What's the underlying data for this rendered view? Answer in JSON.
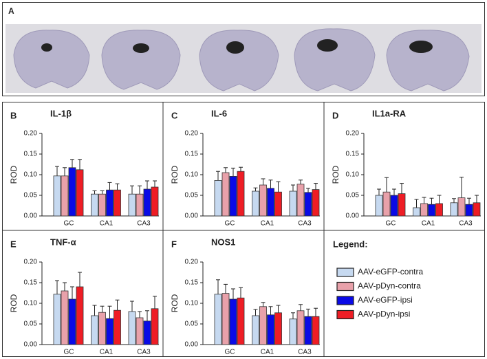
{
  "panel_a": {
    "label": "A"
  },
  "legend": {
    "title": "Legend:",
    "entries": [
      {
        "name": "AAV-eGFP-contra",
        "color": "#c6d9f0"
      },
      {
        "name": "AAV-pDyn-contra",
        "color": "#e8a1aa"
      },
      {
        "name": "AAV-eGFP-ipsi",
        "color": "#0a0ae6"
      },
      {
        "name": "AAV-pDyn-ipsi",
        "color": "#ee1d25"
      }
    ]
  },
  "chart_data": [
    {
      "type": "bar",
      "panel": "B",
      "title": "IL-1β",
      "ylabel": "ROD",
      "categories": [
        "GC",
        "CA1",
        "CA3"
      ],
      "series": [
        {
          "values": [
            0.097,
            0.053,
            0.053
          ],
          "errors": [
            0.023,
            0.008,
            0.02
          ]
        },
        {
          "values": [
            0.097,
            0.053,
            0.053
          ],
          "errors": [
            0.02,
            0.008,
            0.02
          ]
        },
        {
          "values": [
            0.117,
            0.063,
            0.065
          ],
          "errors": [
            0.02,
            0.018,
            0.02
          ]
        },
        {
          "values": [
            0.112,
            0.063,
            0.07
          ],
          "errors": [
            0.025,
            0.015,
            0.015
          ]
        }
      ],
      "ylim": [
        0,
        0.2
      ],
      "yticks": [
        {
          "value": 0,
          "label": "0.00"
        },
        {
          "value": 0.05,
          "label": "0.05"
        },
        {
          "value": 0.1,
          "label": "0.10"
        },
        {
          "value": 0.15,
          "label": "0.15"
        },
        {
          "value": 0.2,
          "label": "0.20"
        }
      ]
    },
    {
      "type": "bar",
      "panel": "C",
      "title": "IL-6",
      "ylabel": "ROD",
      "categories": [
        "GC",
        "CA1",
        "CA3"
      ],
      "series": [
        {
          "values": [
            0.086,
            0.06,
            0.06
          ],
          "errors": [
            0.022,
            0.008,
            0.015
          ]
        },
        {
          "values": [
            0.105,
            0.075,
            0.077
          ],
          "errors": [
            0.012,
            0.015,
            0.01
          ]
        },
        {
          "values": [
            0.096,
            0.067,
            0.057
          ],
          "errors": [
            0.02,
            0.02,
            0.01
          ]
        },
        {
          "values": [
            0.108,
            0.058,
            0.064
          ],
          "errors": [
            0.01,
            0.025,
            0.015
          ]
        }
      ],
      "ylim": [
        0,
        0.2
      ],
      "yticks": [
        {
          "value": 0,
          "label": "0.00"
        },
        {
          "value": 0.05,
          "label": "0.05"
        },
        {
          "value": 0.1,
          "label": "0.10"
        },
        {
          "value": 0.15,
          "label": "0.15"
        },
        {
          "value": 0.2,
          "label": "0.20"
        }
      ]
    },
    {
      "type": "bar",
      "panel": "D",
      "title": "IL1a-RA",
      "ylabel": "ROD",
      "categories": [
        "GC",
        "CA1",
        "CA3"
      ],
      "series": [
        {
          "values": [
            0.05,
            0.02,
            0.032
          ],
          "errors": [
            0.015,
            0.02,
            0.01
          ]
        },
        {
          "values": [
            0.058,
            0.03,
            0.044
          ],
          "errors": [
            0.035,
            0.015,
            0.05
          ]
        },
        {
          "values": [
            0.05,
            0.028,
            0.028
          ],
          "errors": [
            0.015,
            0.015,
            0.015
          ]
        },
        {
          "values": [
            0.054,
            0.03,
            0.032
          ],
          "errors": [
            0.025,
            0.02,
            0.018
          ]
        }
      ],
      "ylim": [
        0,
        0.2
      ],
      "yticks": [
        {
          "value": 0,
          "label": "0.00"
        },
        {
          "value": 0.05,
          "label": "0.05"
        },
        {
          "value": 0.1,
          "label": "0.10"
        },
        {
          "value": 0.15,
          "label": "0.15"
        },
        {
          "value": 0.2,
          "label": "0.20"
        }
      ]
    },
    {
      "type": "bar",
      "panel": "E",
      "title": "TNF-α",
      "ylabel": "ROD",
      "categories": [
        "GC",
        "CA1",
        "CA3"
      ],
      "series": [
        {
          "values": [
            0.122,
            0.07,
            0.08
          ],
          "errors": [
            0.033,
            0.025,
            0.025
          ]
        },
        {
          "values": [
            0.13,
            0.078,
            0.065
          ],
          "errors": [
            0.02,
            0.015,
            0.015
          ]
        },
        {
          "values": [
            0.11,
            0.063,
            0.057
          ],
          "errors": [
            0.03,
            0.03,
            0.025
          ]
        },
        {
          "values": [
            0.14,
            0.083,
            0.087
          ],
          "errors": [
            0.035,
            0.025,
            0.03
          ]
        }
      ],
      "ylim": [
        0,
        0.2
      ],
      "yticks": [
        {
          "value": 0,
          "label": "0.00"
        },
        {
          "value": 0.05,
          "label": "0.05"
        },
        {
          "value": 0.1,
          "label": "0.10"
        },
        {
          "value": 0.15,
          "label": "0.15"
        },
        {
          "value": 0.2,
          "label": "0.20"
        }
      ]
    },
    {
      "type": "bar",
      "panel": "F",
      "title": "NOS1",
      "ylabel": "ROD",
      "categories": [
        "GC",
        "CA1",
        "CA3"
      ],
      "series": [
        {
          "values": [
            0.122,
            0.07,
            0.062
          ],
          "errors": [
            0.035,
            0.015,
            0.015
          ]
        },
        {
          "values": [
            0.124,
            0.092,
            0.082
          ],
          "errors": [
            0.022,
            0.01,
            0.015
          ]
        },
        {
          "values": [
            0.11,
            0.072,
            0.068
          ],
          "errors": [
            0.025,
            0.02,
            0.018
          ]
        },
        {
          "values": [
            0.113,
            0.077,
            0.068
          ],
          "errors": [
            0.025,
            0.018,
            0.02
          ]
        }
      ],
      "ylim": [
        0,
        0.2
      ],
      "yticks": [
        {
          "value": 0,
          "label": "0.00"
        },
        {
          "value": 0.05,
          "label": "0.05"
        },
        {
          "value": 0.1,
          "label": "0.10"
        },
        {
          "value": 0.15,
          "label": "0.15"
        },
        {
          "value": 0.2,
          "label": "0.20"
        }
      ]
    }
  ]
}
